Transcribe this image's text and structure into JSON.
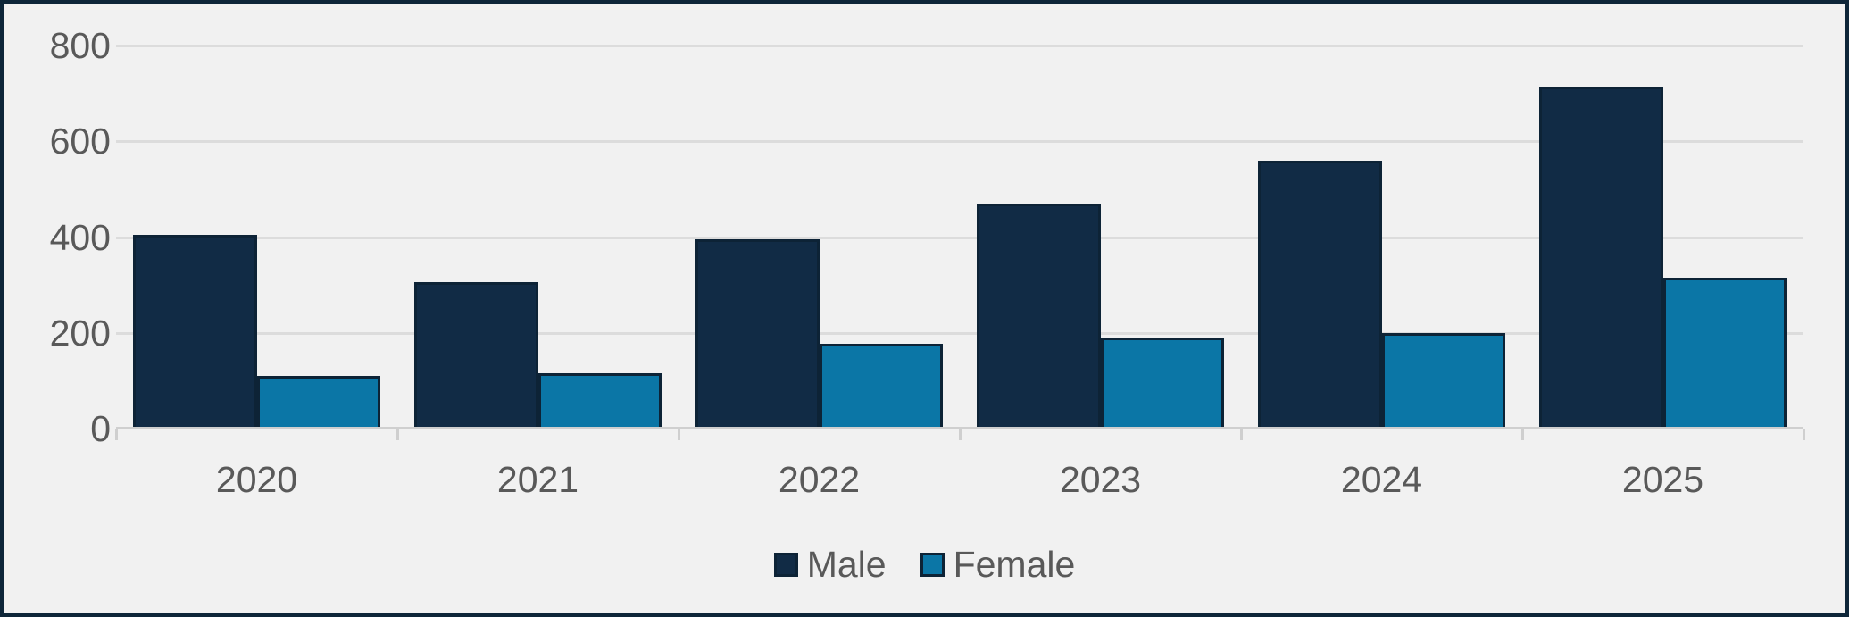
{
  "chart_data": {
    "type": "bar",
    "title": "",
    "xlabel": "",
    "ylabel": "",
    "categories": [
      "2020",
      "2021",
      "2022",
      "2023",
      "2024",
      "2025"
    ],
    "series": [
      {
        "name": "Male",
        "color": "#112b45",
        "values": [
          405,
          305,
          395,
          470,
          560,
          715
        ]
      },
      {
        "name": "Female",
        "color": "#0b76a6",
        "values": [
          110,
          115,
          178,
          190,
          200,
          315
        ]
      }
    ],
    "ylim": [
      0,
      800
    ],
    "yticks": [
      0,
      200,
      400,
      600,
      800
    ],
    "grid": "horizontal",
    "legend_position": "bottom"
  },
  "colors": {
    "background": "#f1f1f1",
    "frame_border": "#0e2639",
    "bar_outline": "#0d2336",
    "gridline": "#dcdcdc",
    "axis_line": "#cfcfcf",
    "label_text": "#595959",
    "male": "#112b45",
    "female": "#0b76a6"
  },
  "legend": {
    "items": [
      {
        "label": "Male"
      },
      {
        "label": "Female"
      }
    ]
  }
}
